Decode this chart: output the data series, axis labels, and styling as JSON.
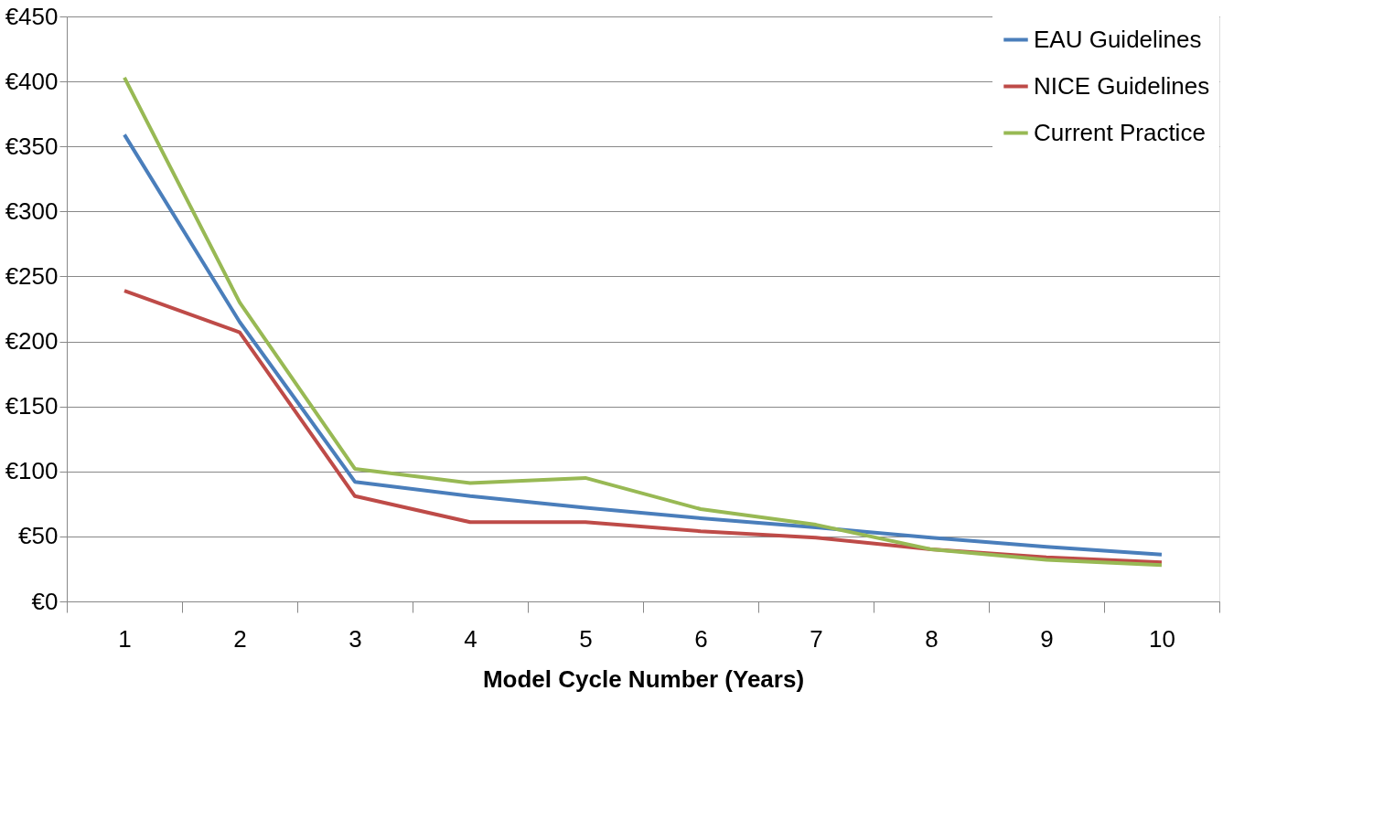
{
  "chart_data": {
    "type": "line",
    "xlabel": "Model Cycle Number (Years)",
    "categories": [
      "1",
      "2",
      "3",
      "4",
      "5",
      "6",
      "7",
      "8",
      "9",
      "10"
    ],
    "series": [
      {
        "name": "EAU Guidelines",
        "color": "#4a7ebb",
        "values": [
          359,
          215,
          92,
          81,
          72,
          64,
          57,
          49,
          42,
          36
        ]
      },
      {
        "name": "NICE Guidelines",
        "color": "#be4b48",
        "values": [
          239,
          207,
          81,
          61,
          61,
          54,
          49,
          40,
          34,
          30
        ]
      },
      {
        "name": "Current Practice",
        "color": "#98b954",
        "values": [
          403,
          230,
          102,
          91,
          95,
          71,
          59,
          40,
          32,
          28
        ]
      }
    ],
    "ylim": [
      0,
      450
    ],
    "yticks": [
      {
        "value": 0,
        "label": "€0"
      },
      {
        "value": 50,
        "label": "€50"
      },
      {
        "value": 100,
        "label": "€100"
      },
      {
        "value": 150,
        "label": "€150"
      },
      {
        "value": 200,
        "label": "€200"
      },
      {
        "value": 250,
        "label": "€250"
      },
      {
        "value": 300,
        "label": "€300"
      },
      {
        "value": 350,
        "label": "€350"
      },
      {
        "value": 400,
        "label": "€400"
      },
      {
        "value": 450,
        "label": "€450"
      }
    ],
    "grid": "y",
    "legend": "top right",
    "marker": "none",
    "line_style": "solid"
  }
}
